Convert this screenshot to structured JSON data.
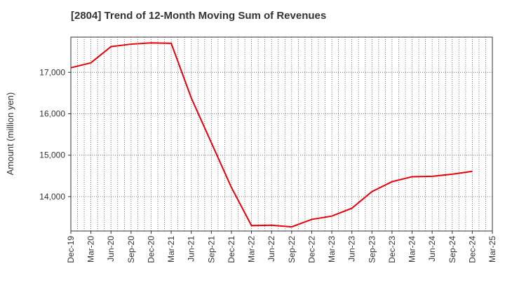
{
  "chart_data": {
    "type": "line",
    "title": "[2804]  Trend of 12-Month Moving Sum of Revenues",
    "xlabel": "",
    "ylabel": "Amount (million yen)",
    "ylim": [
      13170,
      17850
    ],
    "yticks": [
      14000,
      15000,
      16000,
      17000
    ],
    "ytick_labels": [
      "14,000",
      "15,000",
      "16,000",
      "17,000"
    ],
    "x_tick_labels": [
      "Dec-19",
      "Mar-20",
      "Jun-20",
      "Sep-20",
      "Dec-20",
      "Mar-21",
      "Jun-21",
      "Sep-21",
      "Dec-21",
      "Mar-22",
      "Jun-22",
      "Sep-22",
      "Dec-22",
      "Mar-23",
      "Jun-23",
      "Sep-23",
      "Dec-23",
      "Mar-24",
      "Jun-24",
      "Sep-24",
      "Dec-24",
      "Mar-25"
    ],
    "x": [
      "Dec-19",
      "Mar-20",
      "Jun-20",
      "Sep-20",
      "Dec-20",
      "Mar-21",
      "Jun-21",
      "Sep-21",
      "Dec-21",
      "Mar-22",
      "Jun-22",
      "Sep-22",
      "Dec-22",
      "Mar-23",
      "Jun-23",
      "Sep-23",
      "Dec-23",
      "Mar-24",
      "Jun-24",
      "Sep-24",
      "Dec-24"
    ],
    "series": [
      {
        "values": [
          17110,
          17230,
          17620,
          17680,
          17710,
          17700,
          16380,
          15300,
          14220,
          13300,
          13310,
          13270,
          13450,
          13530,
          13720,
          14120,
          14360,
          14480,
          14490,
          14540,
          14610
        ],
        "color": "#e8000b"
      }
    ],
    "grid": true,
    "legend": "none"
  }
}
